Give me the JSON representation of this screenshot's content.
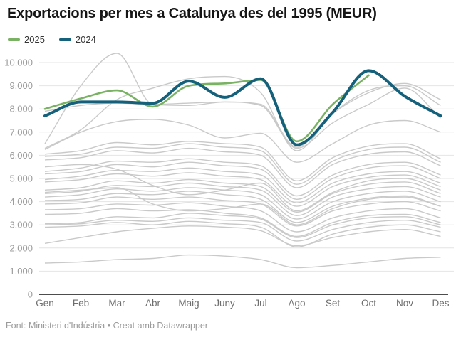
{
  "header": {
    "title": "Exportacions per mes a Catalunya des del 1995 (MEUR)"
  },
  "legend": {
    "items": [
      {
        "label": "2025",
        "color": "#7ab264"
      },
      {
        "label": "2024",
        "color": "#15607a"
      }
    ]
  },
  "footer": {
    "text": "Font: Ministeri d'Indústria • Creat amb Datawrapper"
  },
  "colors": {
    "grid": "#e4e4e4",
    "baseline": "#4d4d4d",
    "y_label": "#9b9b9b",
    "x_label": "#6e6e6e",
    "background": "#ffffff"
  },
  "chart_data": {
    "type": "line",
    "title": "Exportacions per mes a Catalunya des del 1995 (MEUR)",
    "unit": "MEUR",
    "grid": true,
    "legend_position": "top-left",
    "categories": [
      "Gen",
      "Feb",
      "Mar",
      "Abr",
      "Maig",
      "Juny",
      "Jul",
      "Ago",
      "Set",
      "Oct",
      "Nov",
      "Des"
    ],
    "y_axis": {
      "min": 0,
      "max": 10000,
      "tick_step": 1000,
      "tick_labels": [
        "0",
        "1.000",
        "2.000",
        "3.000",
        "4.000",
        "5.000",
        "6.000",
        "7.000",
        "8.000",
        "9.000",
        "10.000"
      ]
    },
    "series": [
      {
        "name": "2025",
        "role": "highlight",
        "color": "#7ab264",
        "stroke_width": 2.6,
        "values": [
          8000,
          8450,
          8800,
          8100,
          9000,
          9100,
          9250,
          6600,
          8200,
          9450,
          null,
          null
        ]
      },
      {
        "name": "2024",
        "role": "highlight",
        "color": "#15607a",
        "stroke_width": 4,
        "values": [
          7700,
          8300,
          8300,
          8250,
          9200,
          8500,
          9300,
          6450,
          7850,
          9650,
          8550,
          7700
        ]
      }
    ],
    "background_series": {
      "description": "Unlabeled gray lines: monthly exports for the years 1995-2023 (values estimated from pixels)",
      "color": "#c9c9c9",
      "stroke_width": 1.4,
      "lines": [
        [
          1350,
          1400,
          1500,
          1550,
          1700,
          1650,
          1500,
          1150,
          1250,
          1400,
          1550,
          1600
        ],
        [
          2200,
          2450,
          2700,
          2850,
          2950,
          2900,
          2750,
          2100,
          2450,
          2700,
          2800,
          2500
        ],
        [
          2900,
          2950,
          3100,
          3000,
          3150,
          3050,
          2900,
          2050,
          2600,
          2900,
          3000,
          2700
        ],
        [
          3000,
          3050,
          3200,
          3150,
          3300,
          3200,
          3100,
          2300,
          2800,
          3100,
          3200,
          2900
        ],
        [
          3050,
          3100,
          3350,
          3300,
          3500,
          3400,
          3250,
          2450,
          3000,
          3300,
          3350,
          3000
        ],
        [
          3450,
          3500,
          3700,
          3600,
          3650,
          3500,
          3300,
          2500,
          3100,
          3400,
          3450,
          3100
        ],
        [
          3650,
          3700,
          3900,
          3850,
          3950,
          3800,
          3600,
          2700,
          3300,
          3600,
          3700,
          3300
        ],
        [
          3900,
          3950,
          4200,
          4100,
          4200,
          4050,
          3900,
          2950,
          3600,
          3900,
          4000,
          3600
        ],
        [
          4050,
          4100,
          4350,
          4300,
          4450,
          4300,
          4100,
          3100,
          3800,
          4150,
          4250,
          3800
        ],
        [
          4200,
          4300,
          4550,
          4450,
          4600,
          4500,
          4300,
          3250,
          4000,
          4350,
          4450,
          4000
        ],
        [
          4350,
          4450,
          4700,
          4650,
          4800,
          4650,
          4500,
          3400,
          4200,
          4550,
          4650,
          4200
        ],
        [
          4400,
          4500,
          4600,
          3900,
          3600,
          3700,
          3900,
          3000,
          3700,
          4100,
          4200,
          3800
        ],
        [
          4500,
          4600,
          4900,
          4800,
          4950,
          4800,
          4650,
          3550,
          4350,
          4750,
          4850,
          4350
        ],
        [
          4850,
          4950,
          5200,
          5100,
          5250,
          5100,
          4950,
          3800,
          4650,
          5050,
          5150,
          4650
        ],
        [
          4950,
          5100,
          5350,
          5300,
          5450,
          5300,
          5150,
          3950,
          4800,
          5200,
          5300,
          4800
        ],
        [
          5200,
          5300,
          5600,
          5500,
          5700,
          5550,
          5400,
          4100,
          5000,
          5450,
          5550,
          5000
        ],
        [
          5300,
          5450,
          5750,
          5700,
          5850,
          5700,
          5550,
          4250,
          5150,
          5600,
          5700,
          5150
        ],
        [
          5500,
          5600,
          5400,
          4700,
          4300,
          4500,
          4800,
          3600,
          4400,
          4900,
          5000,
          4500
        ],
        [
          5800,
          5900,
          6200,
          6100,
          6300,
          6150,
          6000,
          4600,
          5600,
          6050,
          6150,
          5550
        ],
        [
          5950,
          6050,
          6350,
          6300,
          6500,
          6350,
          6200,
          4750,
          5750,
          6250,
          6350,
          5700
        ],
        [
          6050,
          6200,
          6550,
          6450,
          6600,
          6500,
          6350,
          4900,
          5900,
          6400,
          6500,
          5850
        ],
        [
          6250,
          7000,
          7450,
          7550,
          7300,
          6750,
          6950,
          5700,
          6500,
          7300,
          7500,
          7000
        ],
        [
          6300,
          7100,
          8400,
          8900,
          9300,
          9400,
          8700,
          6200,
          7800,
          8800,
          9000,
          8150
        ],
        [
          6500,
          9000,
          10400,
          8200,
          8150,
          8300,
          8200,
          6350,
          7800,
          8700,
          9100,
          8400
        ],
        [
          7900,
          8150,
          8250,
          8200,
          8250,
          8300,
          8150,
          6300,
          7400,
          8200,
          8900,
          7600
        ]
      ]
    }
  }
}
